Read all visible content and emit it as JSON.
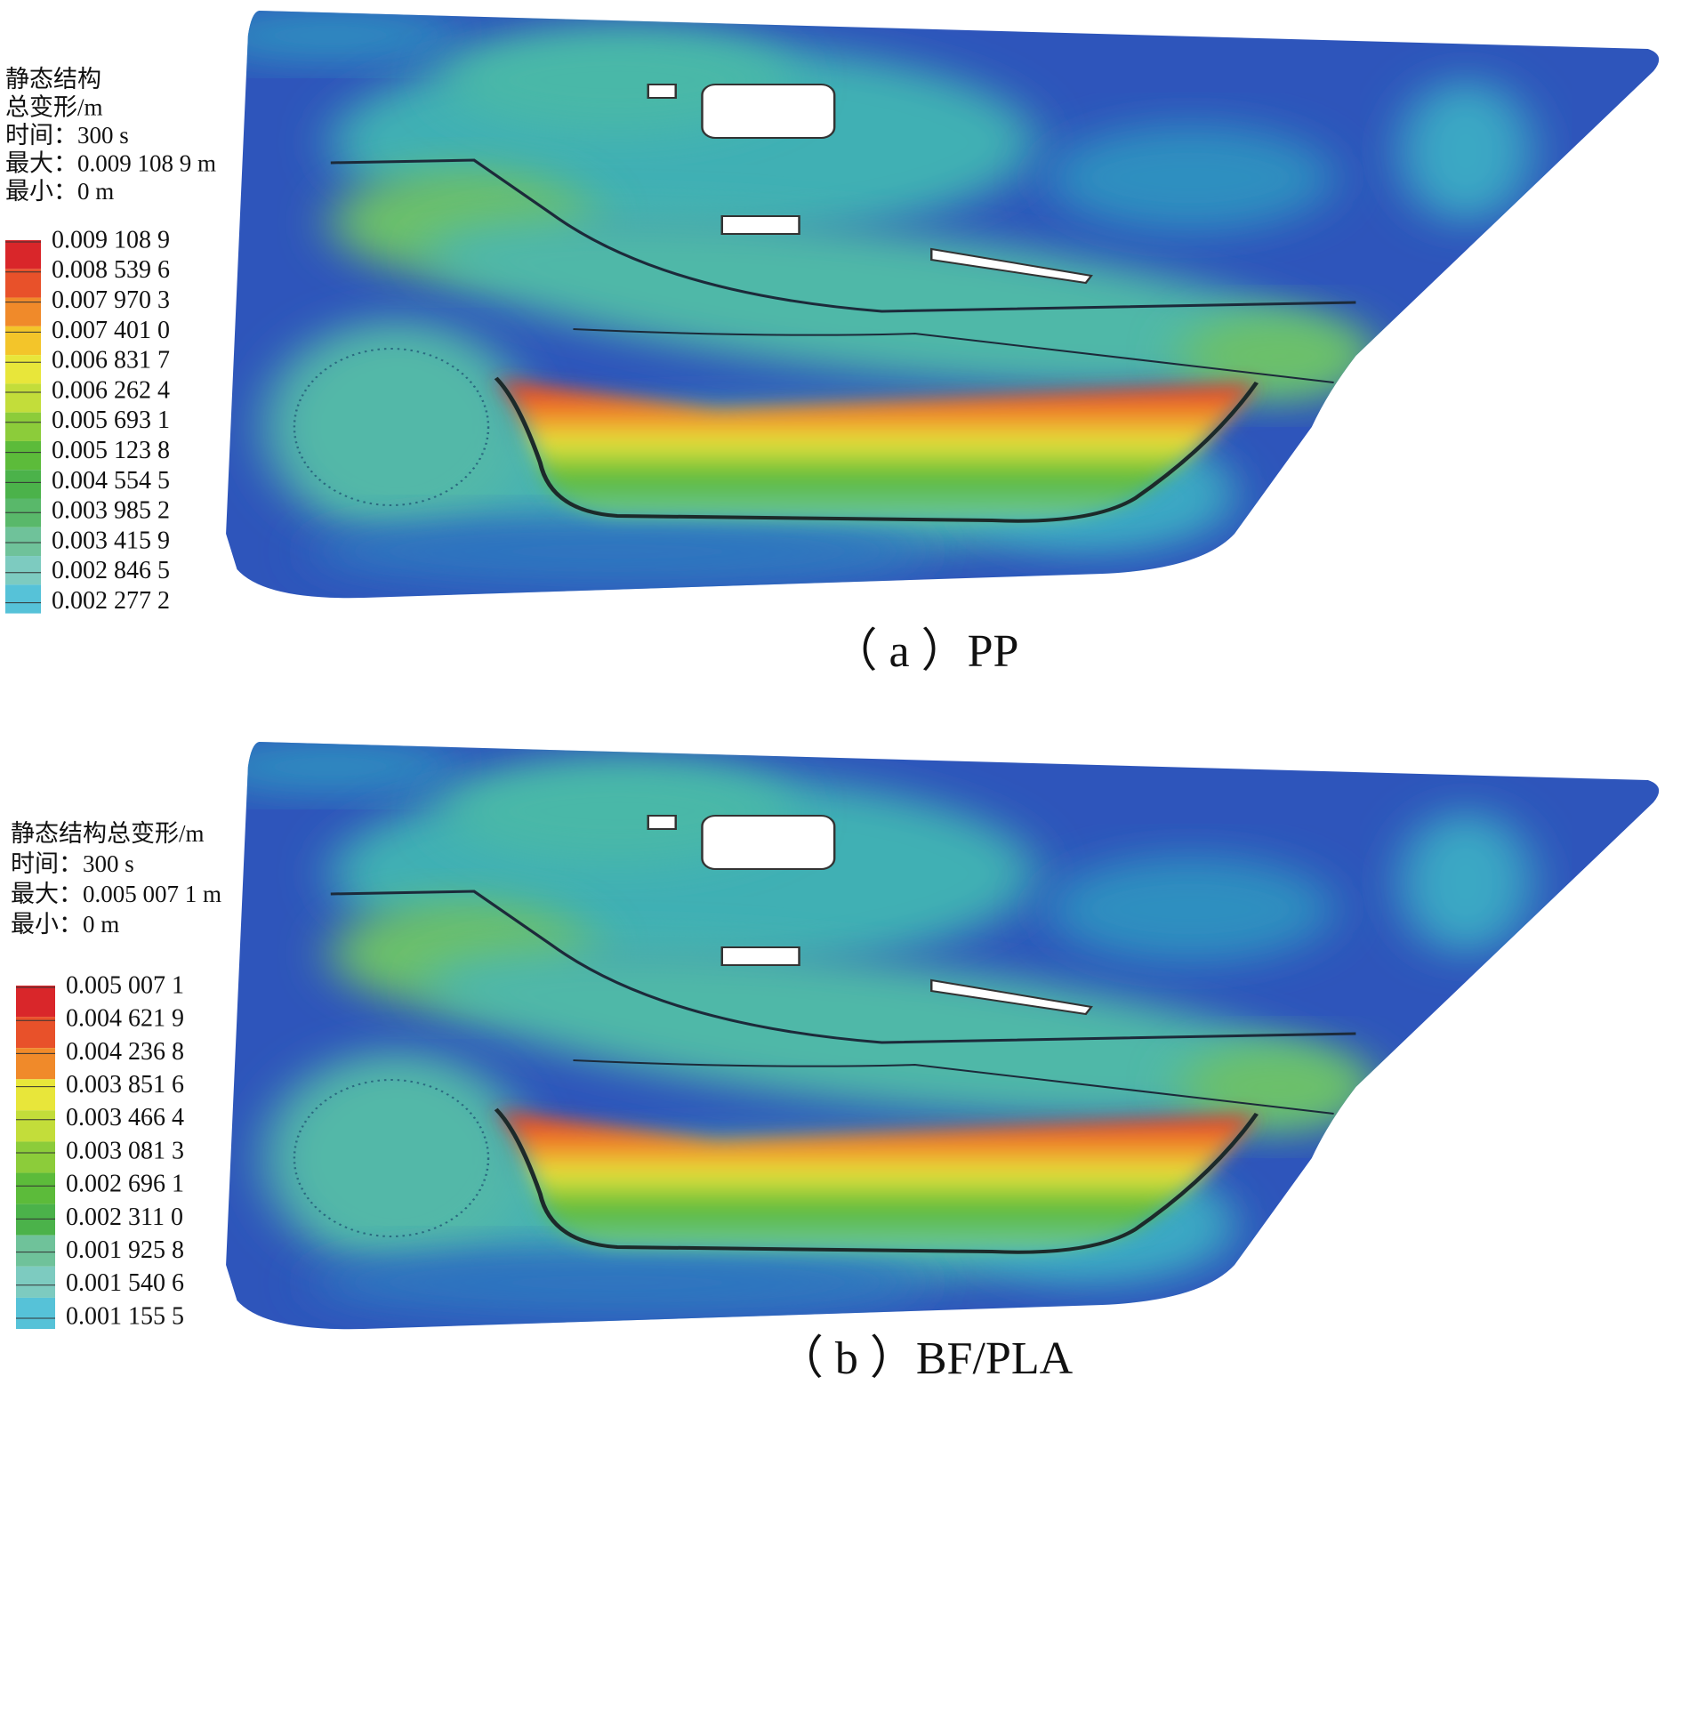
{
  "panels": [
    {
      "legend": {
        "header": [
          "静态结构",
          "总变形/m",
          "时间：300 s",
          "最大：0.009 108 9 m",
          "最小：0 m"
        ],
        "levels": [
          "0.009 108 9",
          "0.008 539 6",
          "0.007 970 3",
          "0.007 401 0",
          "0.006 831 7",
          "0.006 262 4",
          "0.005 693 1",
          "0.005 123 8",
          "0.004 554 5",
          "0.003 985 2",
          "0.003 415 9",
          "0.002 846 5",
          "0.002 277 2"
        ]
      },
      "caption": "（ a ）PP"
    },
    {
      "legend": {
        "header": [
          "静态结构总变形/m",
          "时间：300 s",
          "最大：0.005 007 1 m",
          "最小：0 m"
        ],
        "levels": [
          "0.005 007 1",
          "0.004 621 9",
          "0.004 236 8",
          "0.003 851 6",
          "0.003 466 4",
          "0.003 081 3",
          "0.002 696 1",
          "0.002 311 0",
          "0.001 925 8",
          "0.001 540 6",
          "0.001 155 5"
        ]
      },
      "caption": "（ b ）BF/PLA"
    }
  ]
}
